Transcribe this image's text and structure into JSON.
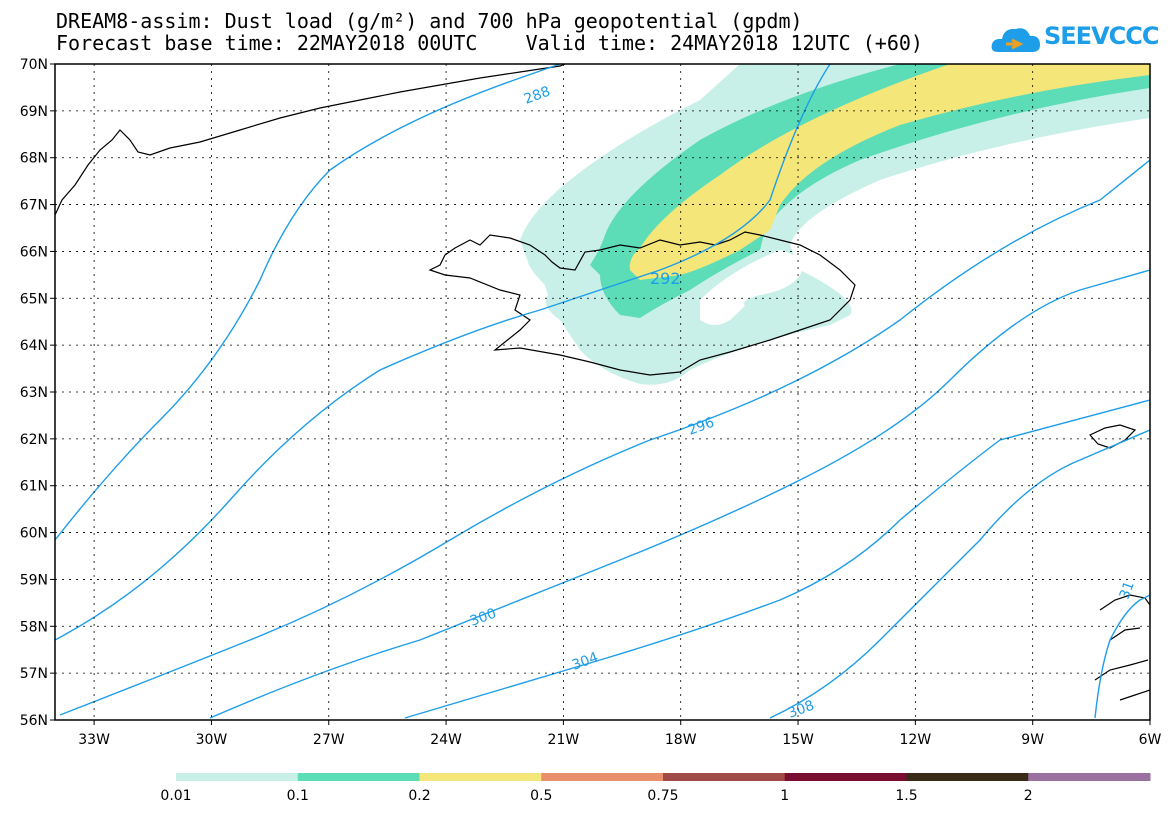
{
  "header": {
    "title_line1": "DREAM8-assim: Dust load (g/m²) and 700 hPa geopotential (gpdm)",
    "title_line2": "Forecast base time: 22MAY2018 00UTC    Valid time: 24MAY2018 12UTC (+60)"
  },
  "logo": {
    "text": "SEEVCCC",
    "icon": "cloud-icon",
    "color": "#1e9ee8"
  },
  "map": {
    "lat_labels": [
      "70N",
      "69N",
      "68N",
      "67N",
      "66N",
      "65N",
      "64N",
      "63N",
      "62N",
      "61N",
      "60N",
      "59N",
      "58N",
      "57N",
      "56N"
    ],
    "lon_labels": [
      "33W",
      "30W",
      "27W",
      "24W",
      "21W",
      "18W",
      "15W",
      "12W",
      "9W",
      "6W"
    ],
    "contour_labels": [
      "288",
      "292",
      "296",
      "300",
      "304",
      "308",
      "31"
    ],
    "contour_color": "#1e9ee8",
    "dust_colors": [
      "#c8f0e8",
      "#5ddcb8",
      "#f5e67a"
    ]
  },
  "colorbar": {
    "labels": [
      "0.01",
      "0.1",
      "0.2",
      "0.5",
      "0.75",
      "1",
      "1.5",
      "2"
    ],
    "colors": [
      "#c8f0e8",
      "#5ddcb8",
      "#f5e67a",
      "#e8906a",
      "#a14a48",
      "#7a0e30",
      "#3a2a18",
      "#9a70a0"
    ]
  }
}
